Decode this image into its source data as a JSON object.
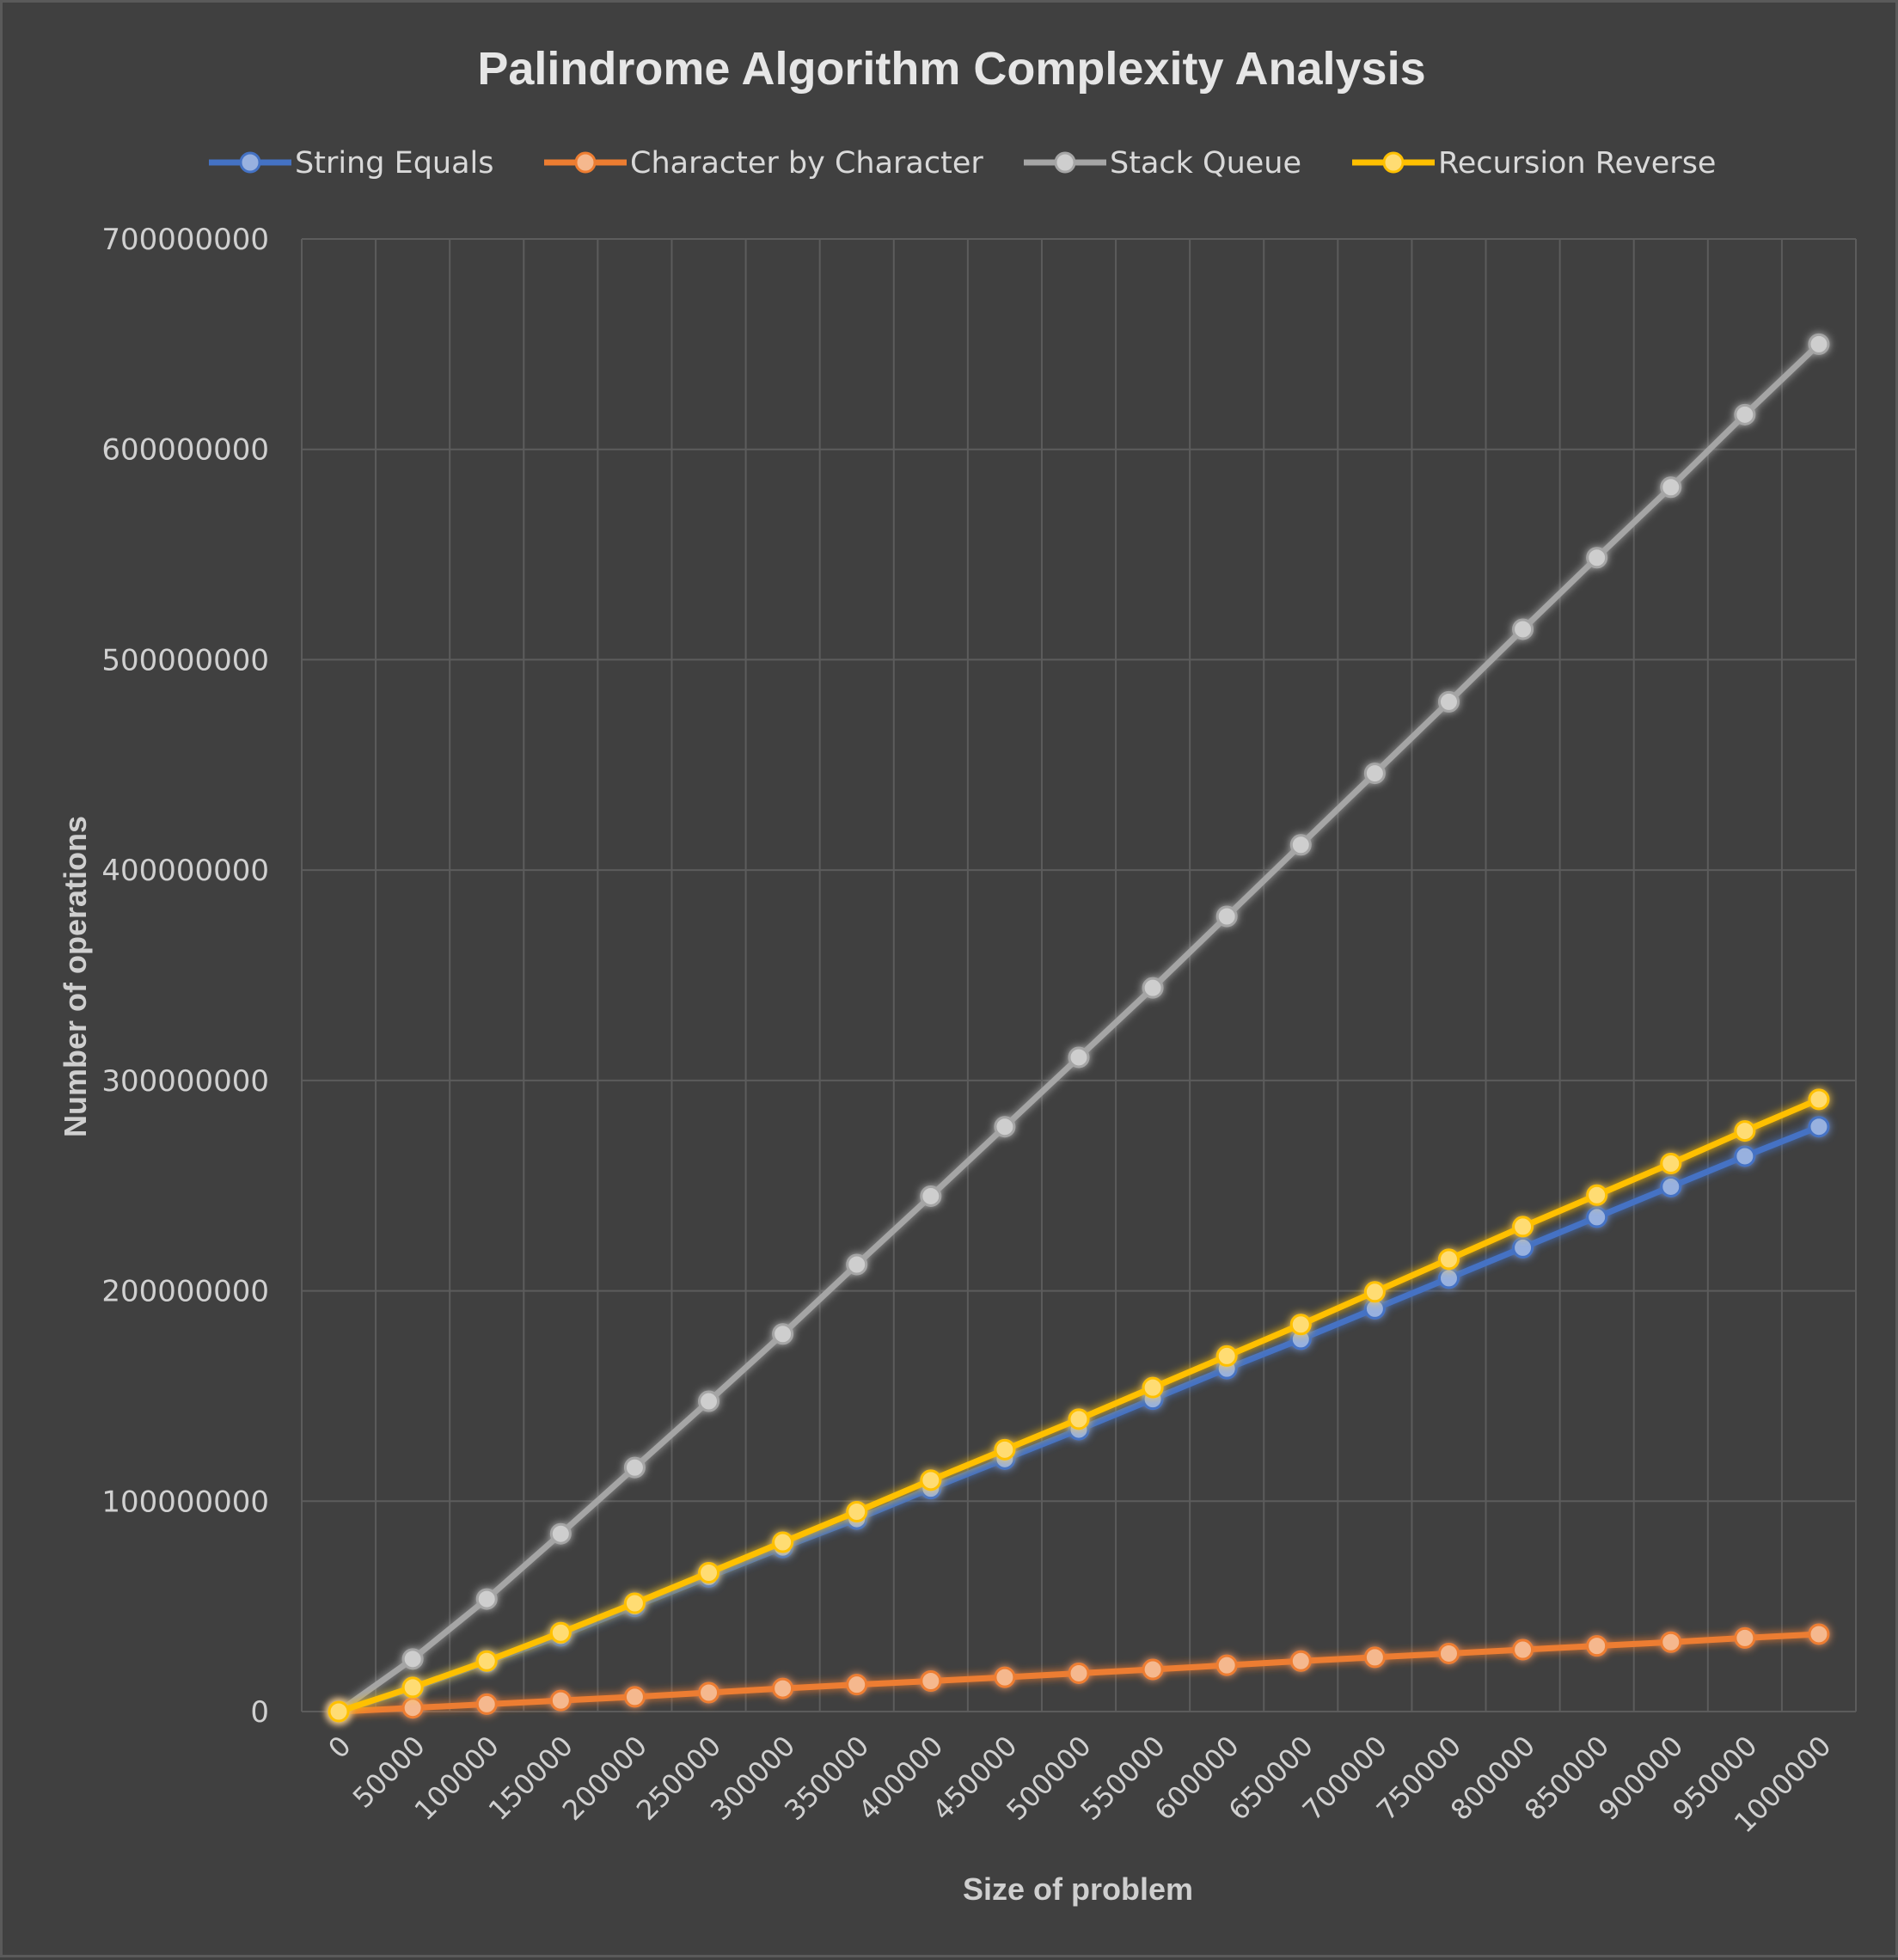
{
  "chart_data": {
    "type": "line",
    "title": "Palindrome Algorithm Complexity Analysis",
    "xlabel": "Size of problem",
    "ylabel": "Number of operations",
    "x": [
      "0",
      "50000",
      "100000",
      "150000",
      "200000",
      "250000",
      "300000",
      "350000",
      "400000",
      "450000",
      "500000",
      "550000",
      "600000",
      "650000",
      "700000",
      "750000",
      "800000",
      "850000",
      "900000",
      "950000",
      "1000000"
    ],
    "ylim": [
      0,
      700000000
    ],
    "yticks": [
      "0",
      "100000000",
      "200000000",
      "300000000",
      "400000000",
      "500000000",
      "600000000",
      "700000000"
    ],
    "grid": true,
    "legend_position": "top",
    "series": [
      {
        "name": "String Equals",
        "color": "#4472c4",
        "values": [
          0,
          11000000,
          23500000,
          36000000,
          50000000,
          64000000,
          78000000,
          91500000,
          106000000,
          120000000,
          134000000,
          148500000,
          163000000,
          177000000,
          191500000,
          206000000,
          220500000,
          235000000,
          249500000,
          264000000,
          278000000
        ]
      },
      {
        "name": "Character by Character",
        "color": "#ed7d31",
        "values": [
          0,
          1750000,
          3500000,
          5250000,
          7000000,
          9000000,
          11000000,
          12800000,
          14500000,
          16300000,
          18200000,
          20000000,
          22000000,
          24000000,
          25800000,
          27600000,
          29400000,
          31200000,
          33000000,
          35000000,
          36800000
        ]
      },
      {
        "name": "Stack Queue",
        "color": "#a5a5a5",
        "values": [
          0,
          25000000,
          53500000,
          84500000,
          116000000,
          147500000,
          179500000,
          212500000,
          245000000,
          278000000,
          311000000,
          344000000,
          378000000,
          412000000,
          446000000,
          480000000,
          514500000,
          548500000,
          582000000,
          616500000,
          650000000
        ]
      },
      {
        "name": "Recursion Reverse",
        "color": "#ffc000",
        "values": [
          0,
          11500000,
          24000000,
          37500000,
          51500000,
          66000000,
          80500000,
          95000000,
          110000000,
          124500000,
          139000000,
          154000000,
          169000000,
          184000000,
          199500000,
          215000000,
          230500000,
          245500000,
          260500000,
          276000000,
          291000000
        ]
      }
    ]
  }
}
